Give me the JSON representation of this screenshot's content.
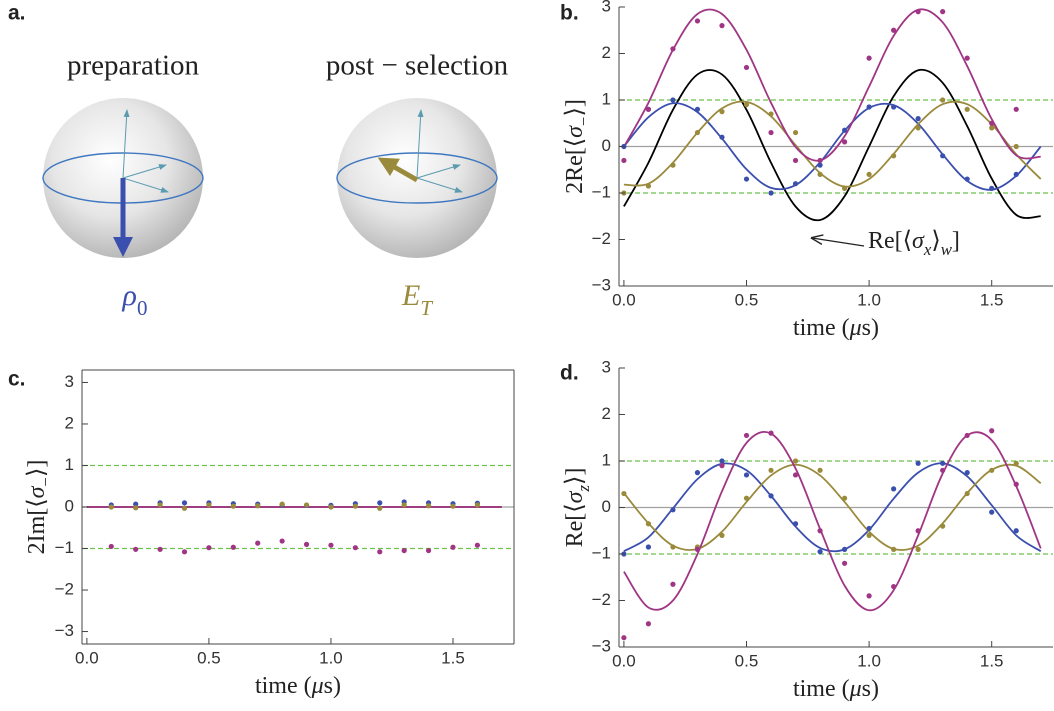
{
  "figure": {
    "panel_a": {
      "panel_label": "a.",
      "left": {
        "title": "preparation",
        "state": [
          {
            "text": "ρ",
            "italic": true
          },
          {
            "text": "0",
            "sub": true
          }
        ],
        "color": "#3b4fae"
      },
      "right": {
        "title": "post − selection",
        "state": [
          {
            "text": "E",
            "italic": true
          },
          {
            "text": "T",
            "sub": true,
            "italic": true
          }
        ],
        "color": "#9a8a3c"
      }
    }
  },
  "chart_data": [
    {
      "panel_label": "b.",
      "type": "scatter",
      "xlabel": [
        {
          "text": "time ("
        },
        {
          "text": "μ",
          "italic": true
        },
        {
          "text": "s)"
        }
      ],
      "ylabel": [
        {
          "text": "2Re[⟨"
        },
        {
          "text": "σ",
          "italic": true
        },
        {
          "text": "−",
          "sub": true
        },
        {
          "text": "⟩]"
        }
      ],
      "annotation": [
        {
          "text": "Re[⟨"
        },
        {
          "text": "σ",
          "italic": true
        },
        {
          "text": "x",
          "sub": true,
          "italic": true
        },
        {
          "text": "⟩"
        },
        {
          "text": "w",
          "sub": true,
          "italic": true
        },
        {
          "text": "]"
        }
      ],
      "xlim": [
        -0.02,
        1.75
      ],
      "ylim": [
        -3,
        3
      ],
      "xticks": [
        {
          "value": 0,
          "label": "0.0"
        },
        0.5,
        {
          "value": 1,
          "label": "1.0"
        },
        1.5
      ],
      "yticks": [
        {
          "value": -3,
          "label": "−3"
        },
        {
          "value": -2,
          "label": "−2"
        },
        {
          "value": -1,
          "label": "−1"
        },
        0,
        1,
        2,
        3
      ],
      "frame": false,
      "hlines": [
        {
          "y": 0,
          "style": "solid",
          "color": "#a0a0a0"
        },
        {
          "y": 1,
          "style": "dashed",
          "color": "#6cc24a"
        },
        {
          "y": -1,
          "style": "dashed",
          "color": "#6cc24a"
        }
      ],
      "x": [
        0,
        0.1,
        0.2,
        0.3,
        0.4,
        0.5,
        0.6,
        0.7,
        0.8,
        0.9,
        1.0,
        1.1,
        1.2,
        1.3,
        1.4,
        1.5,
        1.6
      ],
      "series": [
        {
          "color": "#3b4fae",
          "values": [
            0.0,
            0.8,
            1.0,
            0.8,
            0.2,
            -0.7,
            -1.0,
            -0.8,
            -0.4,
            0.35,
            0.85,
            0.85,
            0.6,
            -0.2,
            -0.7,
            -0.9,
            -0.6
          ]
        },
        {
          "color": "#9a8a3c",
          "values": [
            -1.0,
            -0.85,
            -0.4,
            0.3,
            0.75,
            0.9,
            0.7,
            0.3,
            -0.6,
            -0.9,
            -0.6,
            -0.2,
            0.4,
            1.0,
            0.8,
            0.4,
            0.0
          ]
        },
        {
          "color": "#a03585",
          "values": [
            -0.3,
            0.8,
            2.1,
            2.7,
            2.6,
            1.7,
            0.3,
            -0.3,
            -0.3,
            0.1,
            1.9,
            2.5,
            2.9,
            2.9,
            1.9,
            0.5,
            0.8
          ]
        }
      ],
      "fit_x": [
        0,
        0.1,
        0.2,
        0.3,
        0.4,
        0.5,
        0.6,
        0.7,
        0.8,
        0.9,
        1.0,
        1.1,
        1.2,
        1.3,
        1.4,
        1.5,
        1.6,
        1.7
      ],
      "fits": [
        {
          "color": "#000000",
          "values": [
            -1.29,
            -0.35,
            0.79,
            1.55,
            1.55,
            0.79,
            -0.35,
            -1.29,
            -1.58,
            -1.07,
            0.0,
            1.08,
            1.64,
            1.37,
            0.44,
            -0.69,
            -1.47,
            -1.5
          ]
        },
        {
          "color": "#3b4fae",
          "values": [
            0.0,
            0.63,
            0.93,
            0.74,
            0.17,
            -0.49,
            -0.89,
            -0.83,
            -0.34,
            0.34,
            0.83,
            0.89,
            0.49,
            -0.17,
            -0.74,
            -0.93,
            -0.63,
            0.0
          ]
        },
        {
          "color": "#9a8a3c",
          "values": [
            -0.82,
            -0.8,
            -0.35,
            0.3,
            0.82,
            0.96,
            0.65,
            0.03,
            -0.57,
            -0.86,
            -0.7,
            -0.16,
            0.48,
            0.91,
            0.91,
            0.48,
            -0.17,
            -0.7
          ]
        },
        {
          "color": "#a03585",
          "values": [
            -0.01,
            0.94,
            2.08,
            2.85,
            2.85,
            2.08,
            0.94,
            -0.01,
            -0.3,
            0.22,
            1.29,
            2.38,
            2.94,
            2.67,
            1.73,
            0.59,
            -0.19,
            -0.22
          ]
        }
      ]
    },
    {
      "panel_label": "c.",
      "type": "scatter",
      "xlabel": [
        {
          "text": "time ("
        },
        {
          "text": "μ",
          "italic": true
        },
        {
          "text": "s)"
        }
      ],
      "ylabel": [
        {
          "text": "2Im[⟨"
        },
        {
          "text": "σ",
          "italic": true
        },
        {
          "text": "−",
          "sub": true
        },
        {
          "text": "⟩]"
        }
      ],
      "xlim": [
        -0.02,
        1.75
      ],
      "ylim": [
        -3.3,
        3.3
      ],
      "xticks": [
        {
          "value": 0,
          "label": "0.0"
        },
        0.5,
        {
          "value": 1,
          "label": "1.0"
        },
        1.5
      ],
      "yticks": [
        {
          "value": -3,
          "label": "−3"
        },
        {
          "value": -2,
          "label": "−2"
        },
        {
          "value": -1,
          "label": "−1"
        },
        0,
        1,
        2,
        3
      ],
      "frame": true,
      "hlines": [
        {
          "y": 0,
          "style": "solid",
          "color": "#a0a0a0"
        },
        {
          "y": 1,
          "style": "dashed",
          "color": "#6cc24a"
        },
        {
          "y": -1,
          "style": "dashed",
          "color": "#6cc24a"
        }
      ],
      "x": [
        0.1,
        0.2,
        0.3,
        0.4,
        0.5,
        0.6,
        0.7,
        0.8,
        0.9,
        1.0,
        1.1,
        1.2,
        1.3,
        1.4,
        1.5,
        1.6
      ],
      "series": [
        {
          "color": "#3b4fae",
          "values": [
            0.05,
            0.07,
            0.1,
            0.1,
            0.1,
            0.08,
            0.07,
            0.05,
            0.04,
            0.04,
            0.08,
            0.1,
            0.12,
            0.1,
            0.08,
            0.09
          ]
        },
        {
          "color": "#9a8a3c",
          "values": [
            0.0,
            -0.02,
            0.05,
            -0.03,
            0.05,
            0.02,
            0.03,
            0.07,
            0.05,
            0.0,
            0.02,
            -0.03,
            0.05,
            0.03,
            0.02,
            0.05
          ]
        },
        {
          "color": "#a03585",
          "values": [
            -0.95,
            -1.02,
            -1.02,
            -1.08,
            -0.98,
            -0.97,
            -0.87,
            -0.82,
            -0.9,
            -0.92,
            -0.98,
            -1.08,
            -1.05,
            -1.05,
            -0.97,
            -0.92
          ]
        }
      ],
      "fit_x": [
        0,
        1.7
      ],
      "fits": [
        {
          "color": "#3b4fae",
          "values": [
            0,
            0
          ]
        },
        {
          "color": "#9a8a3c",
          "values": [
            0,
            0
          ]
        },
        {
          "color": "#a03585",
          "values": [
            0,
            0
          ]
        }
      ]
    },
    {
      "panel_label": "d.",
      "type": "scatter",
      "xlabel": [
        {
          "text": "time ("
        },
        {
          "text": "μ",
          "italic": true
        },
        {
          "text": "s)"
        }
      ],
      "ylabel": [
        {
          "text": "Re[⟨"
        },
        {
          "text": "σ",
          "italic": true
        },
        {
          "text": "z",
          "sub": true,
          "italic": true
        },
        {
          "text": "⟩]"
        }
      ],
      "xlim": [
        -0.02,
        1.75
      ],
      "ylim": [
        -3,
        3
      ],
      "xticks": [
        {
          "value": 0,
          "label": "0.0"
        },
        0.5,
        {
          "value": 1,
          "label": "1.0"
        },
        1.5
      ],
      "yticks": [
        {
          "value": -3,
          "label": "−3"
        },
        {
          "value": -2,
          "label": "−2"
        },
        {
          "value": -1,
          "label": "−1"
        },
        0,
        1,
        2,
        3
      ],
      "frame": false,
      "hlines": [
        {
          "y": 0,
          "style": "solid",
          "color": "#a0a0a0"
        },
        {
          "y": 1,
          "style": "dashed",
          "color": "#6cc24a"
        },
        {
          "y": -1,
          "style": "dashed",
          "color": "#6cc24a"
        }
      ],
      "x": [
        0,
        0.1,
        0.2,
        0.3,
        0.4,
        0.5,
        0.6,
        0.7,
        0.8,
        0.9,
        1.0,
        1.1,
        1.2,
        1.3,
        1.4,
        1.5,
        1.6
      ],
      "series": [
        {
          "color": "#3b4fae",
          "values": [
            -1.0,
            -0.85,
            -0.05,
            0.75,
            1.0,
            0.7,
            0.25,
            -0.35,
            -0.95,
            -0.9,
            -0.45,
            0.4,
            0.95,
            0.95,
            0.75,
            -0.1,
            -0.5
          ]
        },
        {
          "color": "#9a8a3c",
          "values": [
            0.3,
            -0.35,
            -0.85,
            -0.85,
            -0.6,
            0.2,
            0.8,
            1.0,
            0.8,
            0.2,
            -0.6,
            -0.9,
            -0.9,
            -0.4,
            0.3,
            0.8,
            0.95
          ]
        },
        {
          "color": "#a03585",
          "values": [
            -2.8,
            -2.5,
            -1.65,
            -0.9,
            0.9,
            1.55,
            1.6,
            0.7,
            -0.5,
            -1.2,
            -1.9,
            -1.7,
            -0.5,
            0.8,
            1.55,
            1.65,
            0.5
          ]
        }
      ],
      "fit_x": [
        0,
        0.1,
        0.2,
        0.3,
        0.4,
        0.5,
        0.6,
        0.7,
        0.8,
        0.9,
        1.0,
        1.1,
        1.2,
        1.3,
        1.4,
        1.5,
        1.6,
        1.7
      ],
      "fits": [
        {
          "color": "#3b4fae",
          "values": [
            -0.94,
            -0.64,
            -0.02,
            0.61,
            0.94,
            0.8,
            0.25,
            -0.41,
            -0.87,
            -0.9,
            -0.48,
            0.19,
            0.75,
            0.95,
            0.67,
            0.05,
            -0.6,
            -0.94
          ]
        },
        {
          "color": "#9a8a3c",
          "values": [
            0.31,
            -0.34,
            -0.82,
            -0.89,
            -0.52,
            0.12,
            0.69,
            0.92,
            0.69,
            0.12,
            -0.52,
            -0.89,
            -0.82,
            -0.34,
            0.31,
            0.81,
            0.9,
            0.52
          ]
        },
        {
          "color": "#a03585",
          "values": [
            -1.38,
            -2.15,
            -2.0,
            -1.0,
            0.35,
            1.39,
            1.59,
            0.84,
            -0.46,
            -1.68,
            -2.21,
            -1.78,
            -0.6,
            0.73,
            1.55,
            1.45,
            0.46,
            -0.88
          ]
        }
      ]
    }
  ]
}
